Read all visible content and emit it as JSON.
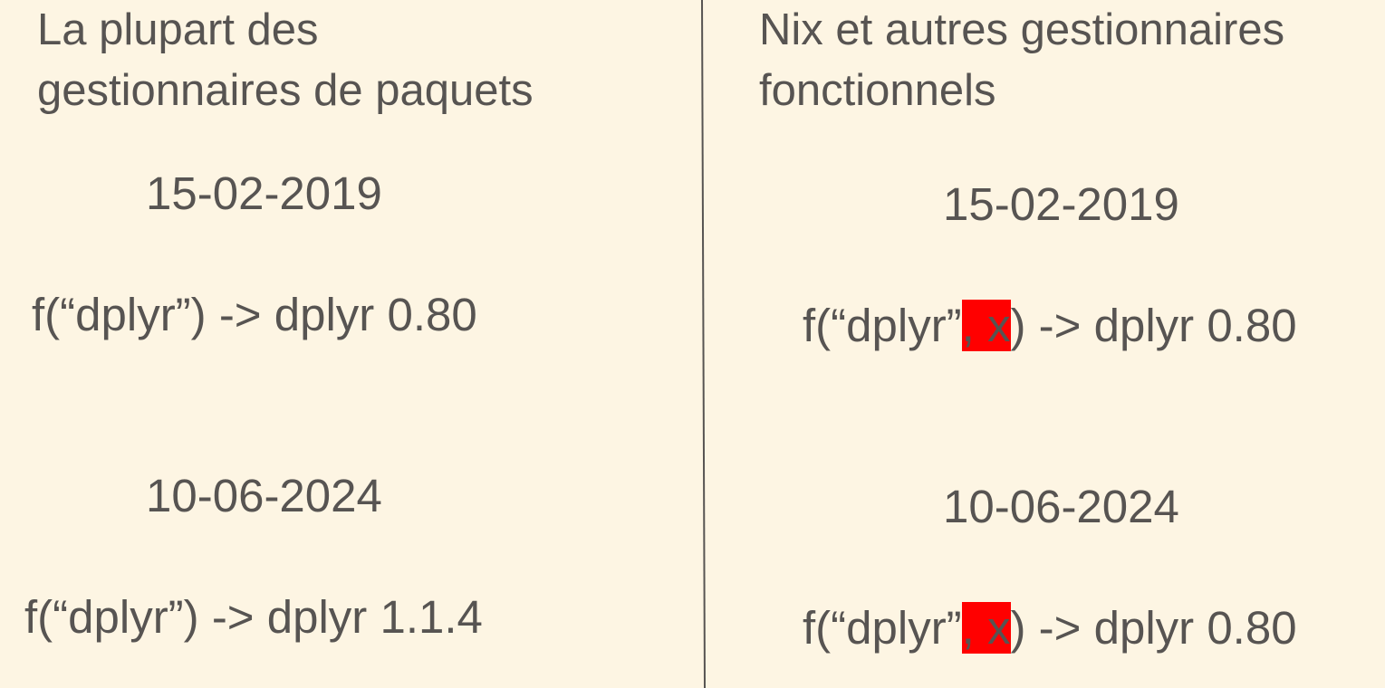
{
  "left": {
    "heading_line1": "La plupart des",
    "heading_line2": "gestionnaires de paquets",
    "date1": "15-02-2019",
    "expr1": "f(“dplyr”) -> dplyr 0.80",
    "date2": "10-06-2024",
    "expr2": "f(“dplyr”) -> dplyr 1.1.4"
  },
  "right": {
    "heading_line1": "Nix et autres gestionnaires",
    "heading_line2": "fonctionnels",
    "date1": "15-02-2019",
    "expr1_prefix": "f(“dplyr”",
    "expr1_highlight": ", x",
    "expr1_suffix": ") -> dplyr 0.80",
    "date2": "10-06-2024",
    "expr2_prefix": "f(“dplyr”",
    "expr2_highlight": ", x",
    "expr2_suffix": ") -> dplyr 0.80"
  },
  "colors": {
    "background": "#fdf5e3",
    "text": "#575452",
    "highlight": "#ff0000",
    "divider": "#575452"
  }
}
